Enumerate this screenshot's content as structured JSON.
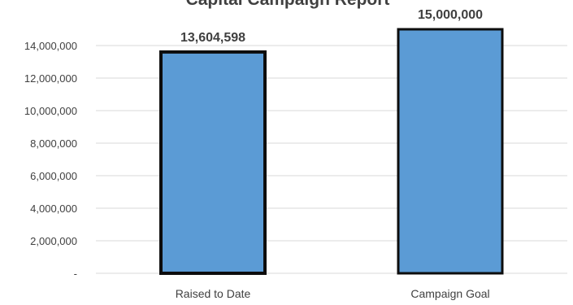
{
  "chart_data": {
    "type": "bar",
    "title": "Capital Campaign Report",
    "categories": [
      "Raised to Date",
      "Campaign Goal"
    ],
    "values": [
      13604598,
      15000000
    ],
    "data_labels": [
      "13,604,598",
      "15,000,000"
    ],
    "xlabel": "",
    "ylabel": "",
    "ylim": [
      0,
      15000000
    ],
    "y_ticks": [
      0,
      2000000,
      4000000,
      6000000,
      8000000,
      10000000,
      12000000,
      14000000
    ],
    "y_tick_labels": [
      "-",
      "2,000,000",
      "4,000,000",
      "6,000,000",
      "8,000,000",
      "10,000,000",
      "12,000,000",
      "14,000,000"
    ],
    "grid": true,
    "legend": "none",
    "colors": {
      "bar_fill": "#5b9bd5",
      "bar_outline": "#0d0d0d",
      "gridline": "#d9d9d9",
      "text": "#404040"
    }
  }
}
